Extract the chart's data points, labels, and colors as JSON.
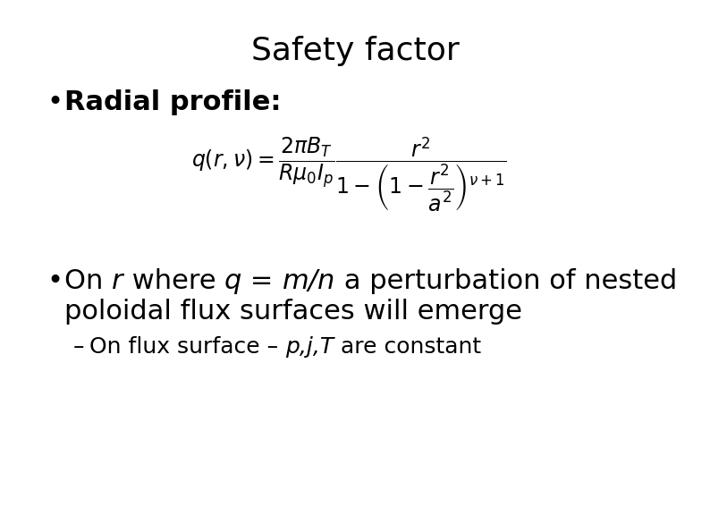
{
  "title": "Safety factor",
  "title_fontsize": 26,
  "background_color": "#ffffff",
  "text_color": "#000000",
  "bullet1_text": "Radial profile:",
  "formula": "q(r, \\nu) = \\dfrac{2\\pi B_T}{R\\mu_0 I_p} \\dfrac{r^2}{1 - \\left(1 - \\dfrac{r^2}{a^2}\\right)^{\\nu+1}}",
  "formula_fontsize": 17,
  "bullet2_line1_plain1": "On ",
  "bullet2_line1_italic1": "r",
  "bullet2_line1_plain2": " where ",
  "bullet2_line1_italic2": "q",
  "bullet2_line1_plain3": " = ",
  "bullet2_line1_italic3": "m/n",
  "bullet2_line1_plain4": " a perturbation of nested",
  "bullet2_line2": "poloidal flux surfaces will emerge",
  "sub_plain1": "On flux surface – ",
  "sub_italic": "p,j,T",
  "sub_plain2": " are constant",
  "fontsize_main": 22,
  "fontsize_bullet1": 22,
  "fontsize_sub": 18,
  "font_sans": "DejaVu Sans"
}
